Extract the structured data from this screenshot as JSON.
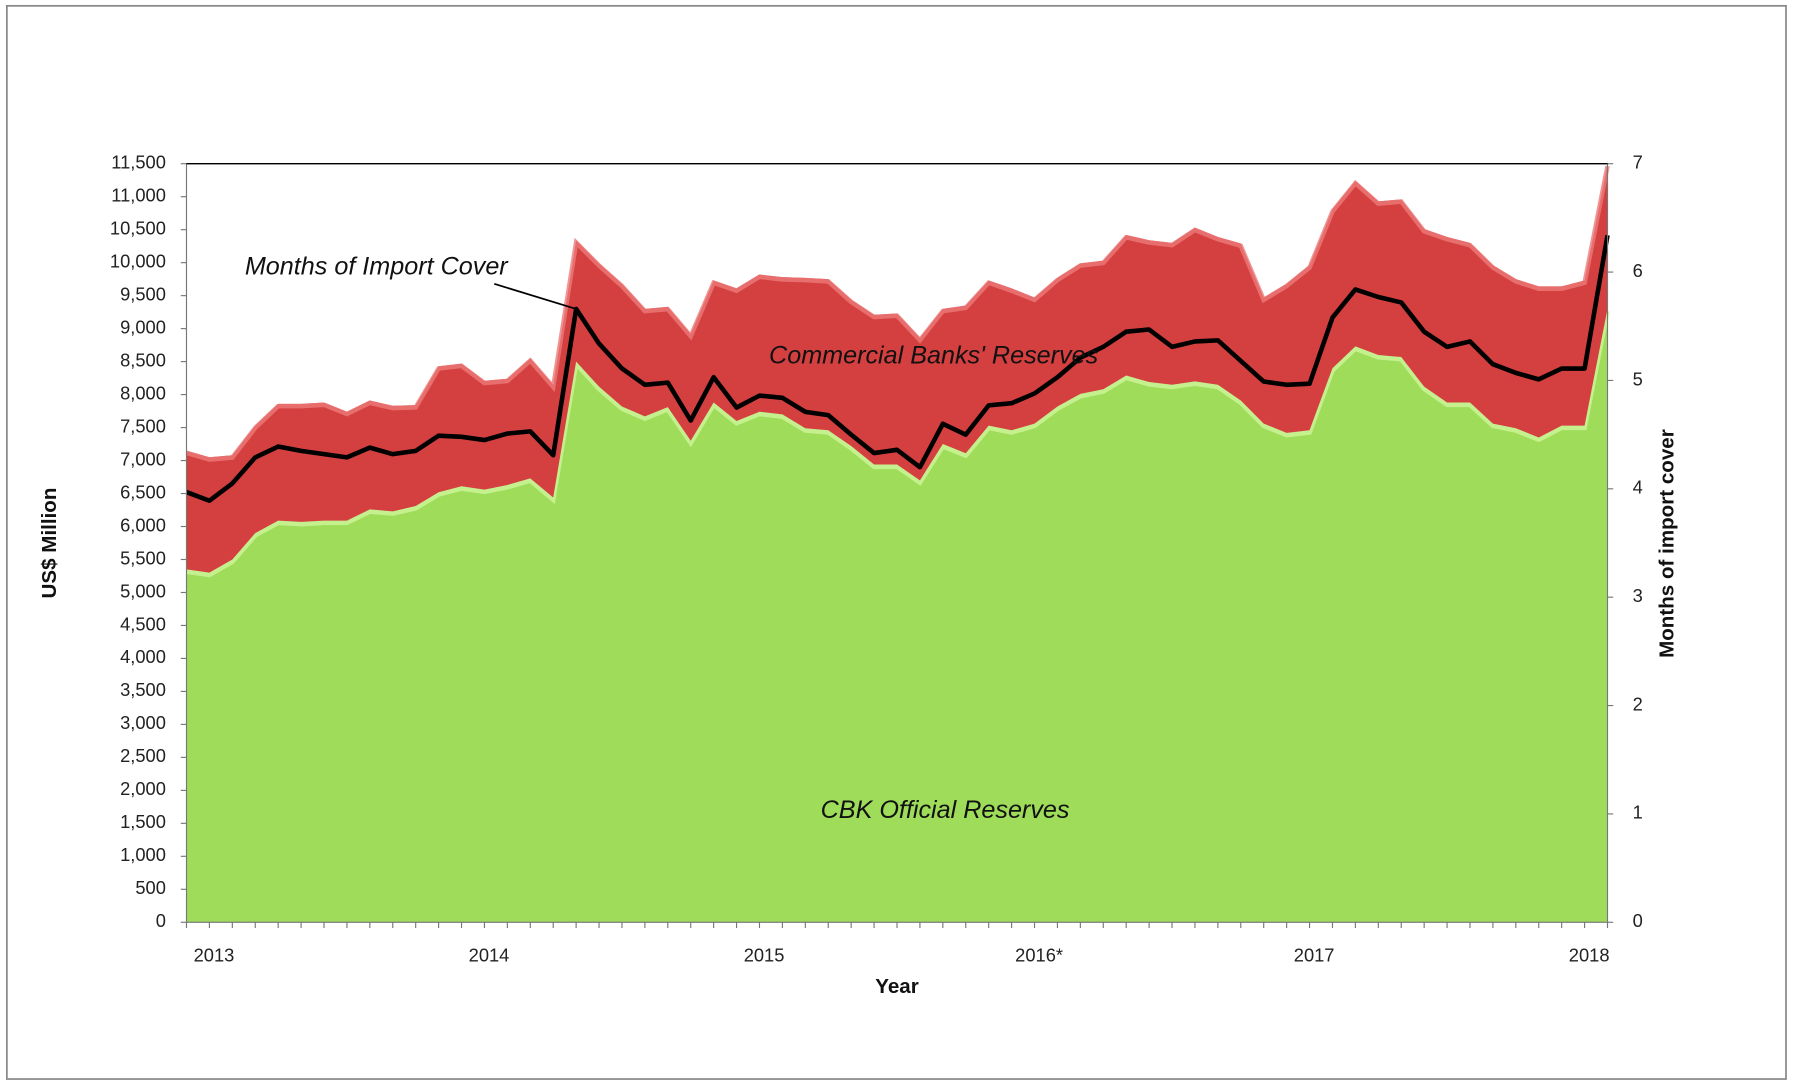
{
  "chart_data": {
    "type": "stacked-area-line",
    "categories": [
      null,
      "2013",
      null,
      null,
      null,
      null,
      null,
      null,
      null,
      null,
      null,
      null,
      null,
      "2014",
      null,
      null,
      null,
      null,
      null,
      null,
      null,
      null,
      null,
      null,
      null,
      "2015",
      null,
      null,
      null,
      null,
      null,
      null,
      null,
      null,
      null,
      null,
      null,
      "2016*",
      null,
      null,
      null,
      null,
      null,
      null,
      null,
      null,
      null,
      null,
      null,
      "2017",
      null,
      null,
      null,
      null,
      null,
      null,
      null,
      null,
      null,
      null,
      null,
      "2018",
      null
    ],
    "series": [
      {
        "name": "CBK Official Reserves",
        "color": "#9edc5a",
        "values": [
          5350,
          5300,
          5500,
          5900,
          6090,
          6070,
          6090,
          6090,
          6260,
          6230,
          6310,
          6520,
          6610,
          6560,
          6630,
          6730,
          6440,
          8500,
          8120,
          7820,
          7670,
          7810,
          7300,
          7880,
          7600,
          7740,
          7700,
          7490,
          7460,
          7220,
          6940,
          6940,
          6700,
          7250,
          7110,
          7530,
          7460,
          7560,
          7820,
          8010,
          8080,
          8290,
          8190,
          8150,
          8200,
          8150,
          7910,
          7560,
          7420,
          7460,
          8400,
          8730,
          8600,
          8570,
          8120,
          7880,
          7880,
          7560,
          7490,
          7350,
          7530,
          7530,
          9300
        ]
      },
      {
        "name": "Commercial Banks' Reserves",
        "color": "#d43f3f",
        "values": [
          1800,
          1750,
          1580,
          1630,
          1770,
          1790,
          1790,
          1650,
          1650,
          1600,
          1530,
          1910,
          1860,
          1650,
          1610,
          1820,
          1710,
          1840,
          1870,
          1860,
          1630,
          1520,
          1620,
          1850,
          2010,
          2080,
          2080,
          2280,
          2290,
          2220,
          2270,
          2290,
          2160,
          2050,
          2240,
          2200,
          2150,
          1910,
          1950,
          1980,
          1950,
          2130,
          2150,
          2150,
          2330,
          2240,
          2380,
          1910,
          2260,
          2500,
          2410,
          2510,
          2330,
          2390,
          2390,
          2510,
          2420,
          2400,
          2260,
          2290,
          2110,
          2200,
          2200
        ]
      },
      {
        "name": "Months of Import Cover",
        "color": "#000000",
        "axis": "y2",
        "values": [
          3.97,
          3.89,
          4.05,
          4.29,
          4.39,
          4.35,
          4.32,
          4.29,
          4.38,
          4.32,
          4.35,
          4.49,
          4.48,
          4.45,
          4.51,
          4.53,
          4.31,
          5.66,
          5.34,
          5.11,
          4.96,
          4.98,
          4.63,
          5.03,
          4.75,
          4.86,
          4.84,
          4.71,
          4.68,
          4.5,
          4.33,
          4.36,
          4.2,
          4.6,
          4.5,
          4.77,
          4.79,
          4.88,
          5.03,
          5.21,
          5.31,
          5.45,
          5.47,
          5.31,
          5.36,
          5.37,
          5.18,
          4.99,
          4.96,
          4.97,
          5.58,
          5.84,
          5.77,
          5.72,
          5.45,
          5.31,
          5.36,
          5.15,
          5.07,
          5.01,
          5.11,
          5.11,
          6.34
        ]
      }
    ],
    "xlabel": "Year",
    "ylabel": "US$ Million",
    "y2label": "Months of import cover",
    "ylim": [
      0,
      11500
    ],
    "yticks": [
      0,
      {
        "value": 500,
        "label": "500"
      },
      {
        "value": 1000,
        "label": "1,000"
      },
      {
        "value": 1500,
        "label": "1,500"
      },
      {
        "value": 2000,
        "label": "2,000"
      },
      {
        "value": 2500,
        "label": "2,500"
      },
      {
        "value": 3000,
        "label": "3,000"
      },
      {
        "value": 3500,
        "label": "3,500"
      },
      {
        "value": 4000,
        "label": "4,000"
      },
      {
        "value": 4500,
        "label": "4,500"
      },
      {
        "value": 5000,
        "label": "5,000"
      },
      {
        "value": 5500,
        "label": "5,500"
      },
      {
        "value": 6000,
        "label": "6,000"
      },
      {
        "value": 6500,
        "label": "6,500"
      },
      {
        "value": 7000,
        "label": "7,000"
      },
      {
        "value": 7500,
        "label": "7,500"
      },
      {
        "value": 8000,
        "label": "8,000"
      },
      {
        "value": 8500,
        "label": "8,500"
      },
      {
        "value": 9000,
        "label": "9,000"
      },
      {
        "value": 9500,
        "label": "9,500"
      },
      {
        "value": 10000,
        "label": "10,000"
      },
      {
        "value": 10500,
        "label": "10,500"
      },
      {
        "value": 11000,
        "label": "11,000"
      },
      {
        "value": 11500,
        "label": "11,500"
      }
    ],
    "y2lim": [
      0,
      7
    ],
    "y2ticks": [
      0,
      1,
      2,
      3,
      4,
      5,
      6,
      7
    ],
    "grid": false
  }
}
